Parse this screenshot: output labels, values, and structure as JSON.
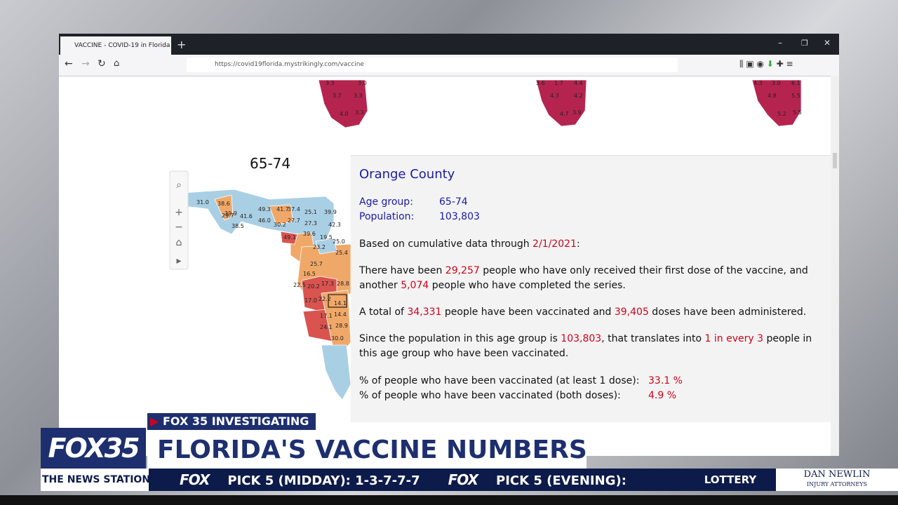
{
  "browser": {
    "tab_title": "VACCINE - COVID-19 in Florida",
    "url": "https://covid19florida.mystrikingly.com/vaccine"
  },
  "top_maps": [
    {
      "labels": [
        "3.3",
        "3.0",
        "3.7",
        "3.3",
        "4.0",
        "3.3"
      ]
    },
    {
      "labels": [
        "3.6",
        "1.7",
        "4.4",
        "4.3",
        "4.2",
        "4.7",
        "3.9"
      ]
    },
    {
      "labels": [
        "4.3",
        "3.0",
        "6.1",
        "4.8",
        "5.5",
        "5.2",
        "5.5"
      ]
    }
  ],
  "map": {
    "title": "65-74",
    "county_labels": [
      "31.0",
      "38.6",
      "29.7",
      "39.9",
      "49.3",
      "41.7",
      "37.4",
      "25.1",
      "39.9",
      "41.6",
      "46.0",
      "38.5",
      "30.2",
      "27.7",
      "27.3",
      "42.3",
      "39.6",
      "49.1",
      "19.5",
      "25.0",
      "23.2",
      "25.4",
      "25.7",
      "16.5",
      "22.5",
      "20.2",
      "17.3",
      "28.8",
      "17.0",
      "22.2",
      "14.1",
      "17.1",
      "14.4",
      "24.1",
      "28.9",
      "30.0"
    ]
  },
  "tooltip": {
    "county": "Orange County",
    "age_group_label": "Age group:",
    "age_group": "65-74",
    "population_label": "Population:",
    "population": "103,803",
    "paragraphs": [
      [
        {
          "text": "Based on cumulative data through "
        },
        {
          "text": "2/1/2021",
          "highlight": true
        },
        {
          "text": ":"
        }
      ],
      [
        {
          "text": "There have been "
        },
        {
          "text": "29,257",
          "highlight": true
        },
        {
          "text": " people who have only received their first dose of the vaccine, and another "
        },
        {
          "text": "5,074",
          "highlight": true
        },
        {
          "text": " people who have completed the series."
        }
      ],
      [
        {
          "text": "A total of "
        },
        {
          "text": "34,331",
          "highlight": true
        },
        {
          "text": " people have been vaccinated and "
        },
        {
          "text": "39,405",
          "highlight": true
        },
        {
          "text": " doses have been administered."
        }
      ],
      [
        {
          "text": "Since the population in this age group is "
        },
        {
          "text": "103,803",
          "highlight": true
        },
        {
          "text": ", that translates into "
        },
        {
          "text": "1 in every 3",
          "highlight": true
        },
        {
          "text": " people in this age group who have been vaccinated."
        }
      ]
    ],
    "stats": [
      {
        "label": "% of people who have been vaccinated (at least 1 dose):",
        "value": "33.1 %"
      },
      {
        "label": "% of people who have been vaccinated (both doses):",
        "value": "4.9 %"
      }
    ]
  },
  "broadcast": {
    "tag": "FOX 35 INVESTIGATING",
    "logo": "FOX35",
    "headline": "FLORIDA'S VACCINE NUMBERS",
    "station": "THE NEWS STATION",
    "ticker": [
      {
        "brand": "FOX",
        "text": "PICK 5 (MIDDAY): 1-3-7-7-7"
      },
      {
        "brand": "FOX",
        "text": "PICK 5 (EVENING):"
      }
    ],
    "section": "LOTTERY",
    "sponsor": "DAN NEWLIN",
    "sponsor_sub": "INJURY ATTORNEYS"
  }
}
